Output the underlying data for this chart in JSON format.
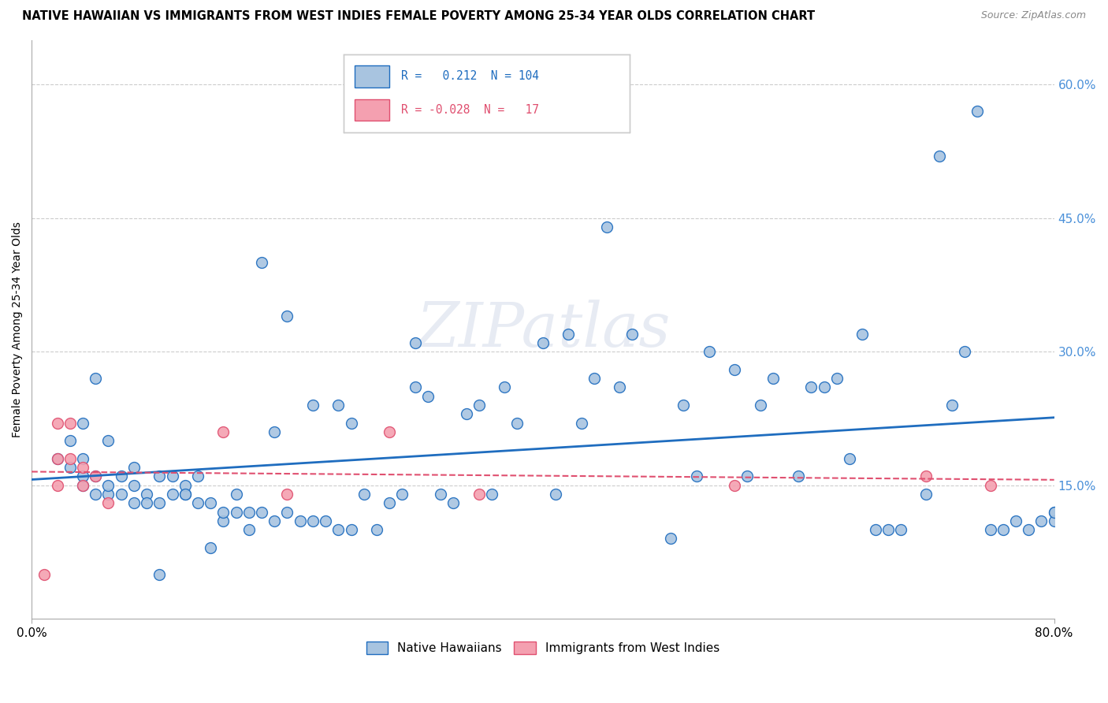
{
  "title": "NATIVE HAWAIIAN VS IMMIGRANTS FROM WEST INDIES FEMALE POVERTY AMONG 25-34 YEAR OLDS CORRELATION CHART",
  "source": "Source: ZipAtlas.com",
  "ylabel": "Female Poverty Among 25-34 Year Olds",
  "xlim": [
    0.0,
    0.8
  ],
  "ylim": [
    0.0,
    0.65
  ],
  "y_ticks_right": [
    0.15,
    0.3,
    0.45,
    0.6
  ],
  "y_tick_labels_right": [
    "15.0%",
    "30.0%",
    "45.0%",
    "60.0%"
  ],
  "blue_color": "#a8c4e0",
  "blue_line_color": "#1f6dbf",
  "pink_color": "#f4a0b0",
  "pink_line_color": "#e05070",
  "watermark": "ZIPatlas",
  "blue_scatter_x": [
    0.02,
    0.03,
    0.03,
    0.04,
    0.04,
    0.04,
    0.04,
    0.05,
    0.05,
    0.05,
    0.06,
    0.06,
    0.06,
    0.07,
    0.07,
    0.08,
    0.08,
    0.08,
    0.09,
    0.09,
    0.1,
    0.1,
    0.1,
    0.11,
    0.11,
    0.12,
    0.12,
    0.12,
    0.13,
    0.13,
    0.14,
    0.14,
    0.15,
    0.15,
    0.16,
    0.16,
    0.17,
    0.17,
    0.18,
    0.18,
    0.19,
    0.19,
    0.2,
    0.2,
    0.21,
    0.22,
    0.22,
    0.23,
    0.24,
    0.24,
    0.25,
    0.25,
    0.26,
    0.27,
    0.28,
    0.29,
    0.3,
    0.3,
    0.31,
    0.32,
    0.33,
    0.34,
    0.35,
    0.36,
    0.37,
    0.38,
    0.4,
    0.41,
    0.42,
    0.43,
    0.44,
    0.45,
    0.46,
    0.47,
    0.5,
    0.51,
    0.52,
    0.53,
    0.55,
    0.56,
    0.57,
    0.58,
    0.6,
    0.61,
    0.62,
    0.63,
    0.64,
    0.65,
    0.66,
    0.67,
    0.68,
    0.7,
    0.71,
    0.72,
    0.73,
    0.74,
    0.75,
    0.76,
    0.77,
    0.78,
    0.79,
    0.8,
    0.8,
    0.8
  ],
  "blue_scatter_y": [
    0.18,
    0.2,
    0.17,
    0.15,
    0.18,
    0.16,
    0.22,
    0.14,
    0.16,
    0.27,
    0.14,
    0.15,
    0.2,
    0.14,
    0.16,
    0.13,
    0.15,
    0.17,
    0.14,
    0.13,
    0.05,
    0.13,
    0.16,
    0.14,
    0.16,
    0.14,
    0.15,
    0.14,
    0.13,
    0.16,
    0.08,
    0.13,
    0.11,
    0.12,
    0.12,
    0.14,
    0.1,
    0.12,
    0.4,
    0.12,
    0.11,
    0.21,
    0.12,
    0.34,
    0.11,
    0.11,
    0.24,
    0.11,
    0.1,
    0.24,
    0.1,
    0.22,
    0.14,
    0.1,
    0.13,
    0.14,
    0.26,
    0.31,
    0.25,
    0.14,
    0.13,
    0.23,
    0.24,
    0.14,
    0.26,
    0.22,
    0.31,
    0.14,
    0.32,
    0.22,
    0.27,
    0.44,
    0.26,
    0.32,
    0.09,
    0.24,
    0.16,
    0.3,
    0.28,
    0.16,
    0.24,
    0.27,
    0.16,
    0.26,
    0.26,
    0.27,
    0.18,
    0.32,
    0.1,
    0.1,
    0.1,
    0.14,
    0.52,
    0.24,
    0.3,
    0.57,
    0.1,
    0.1,
    0.11,
    0.1,
    0.11,
    0.12,
    0.11,
    0.12
  ],
  "pink_scatter_x": [
    0.01,
    0.02,
    0.02,
    0.02,
    0.03,
    0.03,
    0.04,
    0.04,
    0.05,
    0.06,
    0.15,
    0.2,
    0.28,
    0.35,
    0.55,
    0.7,
    0.75
  ],
  "pink_scatter_y": [
    0.05,
    0.22,
    0.18,
    0.15,
    0.22,
    0.18,
    0.15,
    0.17,
    0.16,
    0.13,
    0.21,
    0.14,
    0.21,
    0.14,
    0.15,
    0.16,
    0.15
  ]
}
